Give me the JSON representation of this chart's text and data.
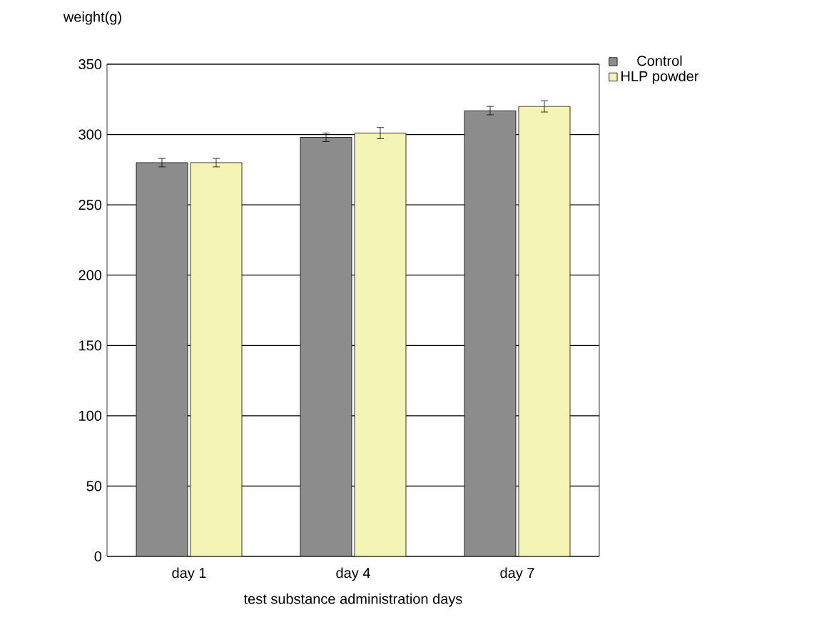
{
  "chart_data": {
    "type": "bar",
    "ylabel": "weight(g)",
    "xlabel": "test substance administration days",
    "categories": [
      "day 1",
      "day 4",
      "day 7"
    ],
    "series": [
      {
        "name": "Control",
        "color": "#8c8c8c",
        "values": [
          280,
          298,
          317
        ],
        "errors": [
          3,
          3,
          3
        ]
      },
      {
        "name": "HLP powder",
        "color": "#f4f4b4",
        "values": [
          280,
          301,
          320
        ],
        "errors": [
          3,
          4,
          4
        ]
      }
    ],
    "ylim": [
      0,
      350
    ],
    "yticks": [
      0,
      50,
      100,
      150,
      200,
      250,
      300,
      350
    ],
    "grid": "y",
    "legend": "top right"
  }
}
